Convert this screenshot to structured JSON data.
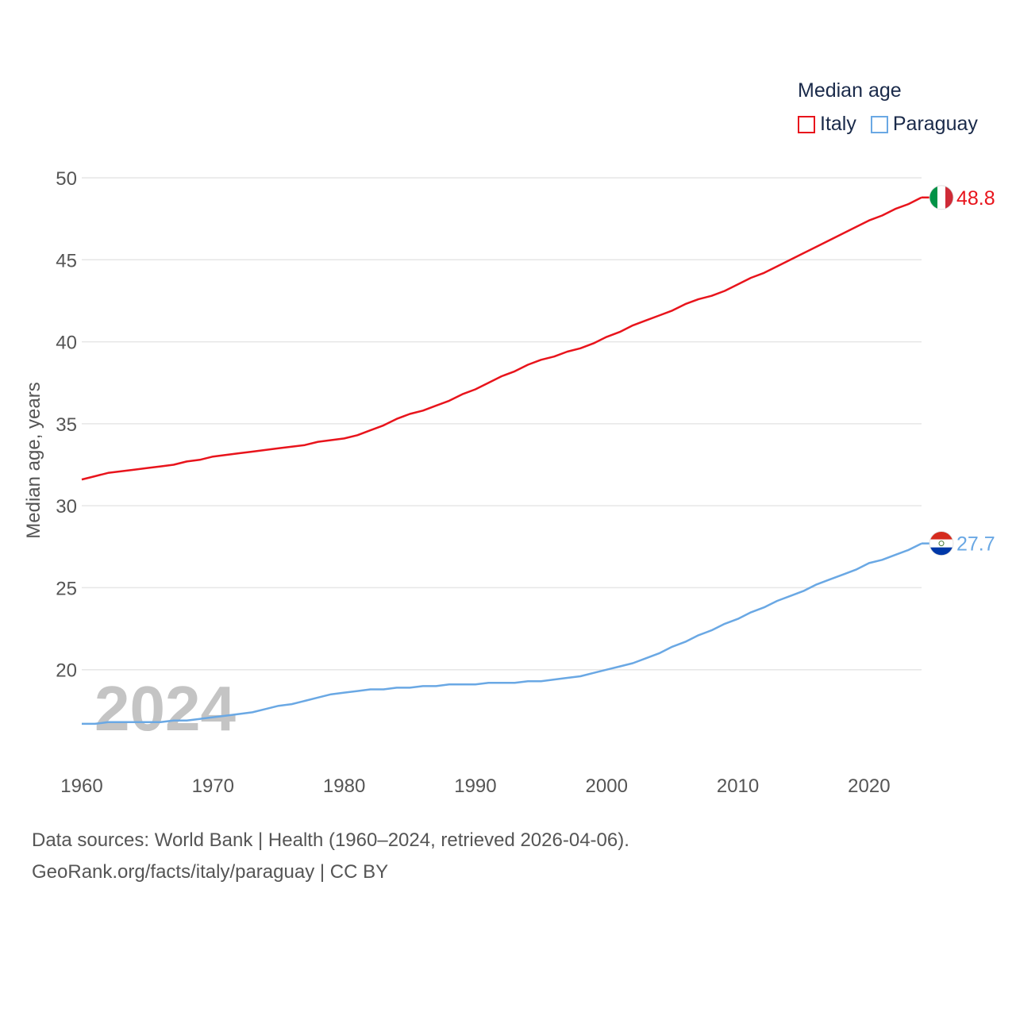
{
  "legend": {
    "title": "Median age",
    "items": [
      {
        "label": "Italy",
        "color": "#e8141c"
      },
      {
        "label": "Paraguay",
        "color": "#6aa8e4"
      }
    ]
  },
  "footer": {
    "line1": "Data sources: World Bank | Health (1960–2024, retrieved 2026-04-06).",
    "line2": "GeoRank.org/facts/italy/paraguay | CC BY"
  },
  "chart_data": {
    "type": "line",
    "ylabel": "Median age, years",
    "xlabel": "",
    "ylim": [
      15,
      50
    ],
    "xlim": [
      1960,
      2024
    ],
    "yticks": [
      20,
      25,
      30,
      35,
      40,
      45,
      50
    ],
    "xticks": [
      1960,
      1970,
      1980,
      1990,
      2000,
      2010,
      2020
    ],
    "grid": true,
    "year_watermark": "2024",
    "x": [
      1960,
      1961,
      1962,
      1963,
      1964,
      1965,
      1966,
      1967,
      1968,
      1969,
      1970,
      1971,
      1972,
      1973,
      1974,
      1975,
      1976,
      1977,
      1978,
      1979,
      1980,
      1981,
      1982,
      1983,
      1984,
      1985,
      1986,
      1987,
      1988,
      1989,
      1990,
      1991,
      1992,
      1993,
      1994,
      1995,
      1996,
      1997,
      1998,
      1999,
      2000,
      2001,
      2002,
      2003,
      2004,
      2005,
      2006,
      2007,
      2008,
      2009,
      2010,
      2011,
      2012,
      2013,
      2014,
      2015,
      2016,
      2017,
      2018,
      2019,
      2020,
      2021,
      2022,
      2023,
      2024
    ],
    "series": [
      {
        "name": "Italy",
        "color": "#e8141c",
        "end_label": "48.8",
        "flag": "italy-flag-icon",
        "values": [
          31.6,
          31.8,
          32.0,
          32.1,
          32.2,
          32.3,
          32.4,
          32.5,
          32.7,
          32.8,
          33.0,
          33.1,
          33.2,
          33.3,
          33.4,
          33.5,
          33.6,
          33.7,
          33.9,
          34.0,
          34.1,
          34.3,
          34.6,
          34.9,
          35.3,
          35.6,
          35.8,
          36.1,
          36.4,
          36.8,
          37.1,
          37.5,
          37.9,
          38.2,
          38.6,
          38.9,
          39.1,
          39.4,
          39.6,
          39.9,
          40.3,
          40.6,
          41.0,
          41.3,
          41.6,
          41.9,
          42.3,
          42.6,
          42.8,
          43.1,
          43.5,
          43.9,
          44.2,
          44.6,
          45.0,
          45.4,
          45.8,
          46.2,
          46.6,
          47.0,
          47.4,
          47.7,
          48.1,
          48.4,
          48.8
        ]
      },
      {
        "name": "Paraguay",
        "color": "#6aa8e4",
        "end_label": "27.7",
        "flag": "paraguay-flag-icon",
        "values": [
          16.7,
          16.7,
          16.8,
          16.8,
          16.8,
          16.8,
          16.8,
          16.9,
          16.9,
          17.0,
          17.1,
          17.2,
          17.3,
          17.4,
          17.6,
          17.8,
          17.9,
          18.1,
          18.3,
          18.5,
          18.6,
          18.7,
          18.8,
          18.8,
          18.9,
          18.9,
          19.0,
          19.0,
          19.1,
          19.1,
          19.1,
          19.2,
          19.2,
          19.2,
          19.3,
          19.3,
          19.4,
          19.5,
          19.6,
          19.8,
          20.0,
          20.2,
          20.4,
          20.7,
          21.0,
          21.4,
          21.7,
          22.1,
          22.4,
          22.8,
          23.1,
          23.5,
          23.8,
          24.2,
          24.5,
          24.8,
          25.2,
          25.5,
          25.8,
          26.1,
          26.5,
          26.7,
          27.0,
          27.3,
          27.7
        ]
      }
    ]
  }
}
